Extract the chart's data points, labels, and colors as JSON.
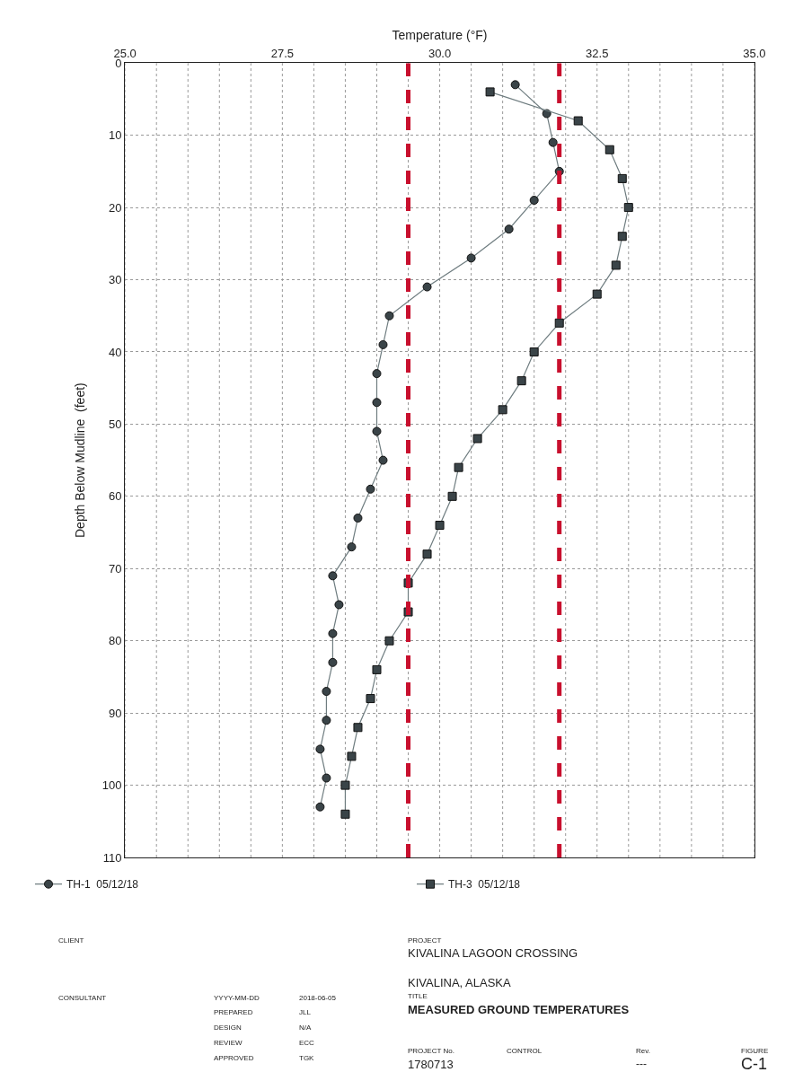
{
  "chart_data": {
    "type": "line",
    "xlabel": "Temperature (°F)",
    "ylabel": "Depth Below Mudline  (feet)",
    "xlim": [
      25,
      35
    ],
    "xticks": [
      {
        "value": 25,
        "label": "25.0"
      },
      {
        "value": 27.5,
        "label": "27.5"
      },
      {
        "value": 30,
        "label": "30.0"
      },
      {
        "value": 32.5,
        "label": "32.5"
      },
      {
        "value": 35,
        "label": "35.0"
      }
    ],
    "ylim": [
      110,
      0
    ],
    "yticks": [
      0,
      10,
      20,
      30,
      40,
      50,
      60,
      70,
      80,
      90,
      100,
      110
    ],
    "grid": true,
    "legend": "bottom",
    "line_style": "solid",
    "series": [
      {
        "name": "TH-1  05/12/18",
        "color": "#3a4448",
        "marker": "circle",
        "x": [
          31.2,
          31.7,
          31.8,
          31.9,
          31.5,
          31.1,
          30.5,
          29.8,
          29.2,
          29.1,
          29.0,
          29.0,
          29.0,
          29.1,
          28.9,
          28.7,
          28.6,
          28.3,
          28.4,
          28.3,
          28.3,
          28.2,
          28.2,
          28.1,
          28.2,
          28.1
        ],
        "values": [
          3,
          7,
          11,
          15,
          19,
          23,
          27,
          31,
          35,
          39,
          43,
          47,
          51,
          55,
          59,
          63,
          67,
          71,
          75,
          79,
          83,
          87,
          91,
          95,
          99,
          103
        ]
      },
      {
        "name": "TH-3  05/12/18",
        "color": "#3a4448",
        "marker": "square",
        "x": [
          30.8,
          32.2,
          32.7,
          32.9,
          33.0,
          32.9,
          32.8,
          32.5,
          31.9,
          31.5,
          31.3,
          31.0,
          30.6,
          30.3,
          30.2,
          30.0,
          29.8,
          29.5,
          29.5,
          29.2,
          29.0,
          28.9,
          28.7,
          28.6,
          28.5,
          28.5
        ],
        "values": [
          4,
          8,
          12,
          16,
          20,
          24,
          28,
          32,
          36,
          40,
          44,
          48,
          52,
          56,
          60,
          64,
          68,
          72,
          76,
          80,
          84,
          88,
          92,
          96,
          100,
          104
        ]
      }
    ],
    "ref_lines": [
      {
        "axis": "x",
        "value": 29.5,
        "color": "#c8102e",
        "line_style": "dashed"
      },
      {
        "axis": "x",
        "value": 31.9,
        "color": "#c8102e",
        "line_style": "dashed"
      }
    ],
    "annotations": [
      "CLIENT",
      "PROJECT",
      "KIVALINA LAGOON CROSSING",
      "KIVALINA, ALASKA",
      "CONSULTANT",
      "YYYY-MM-DD",
      "2018-06-05",
      "TITLE",
      "MEASURED GROUND TEMPERATURES",
      "PREPARED",
      "JLL",
      "DESIGN",
      "N/A",
      "REVIEW",
      "ECC",
      "APPROVED",
      "TGK",
      "PROJECT No.",
      "CONTROL",
      "Rev.",
      "FIGURE",
      "1780713",
      "---",
      "C-1"
    ]
  }
}
